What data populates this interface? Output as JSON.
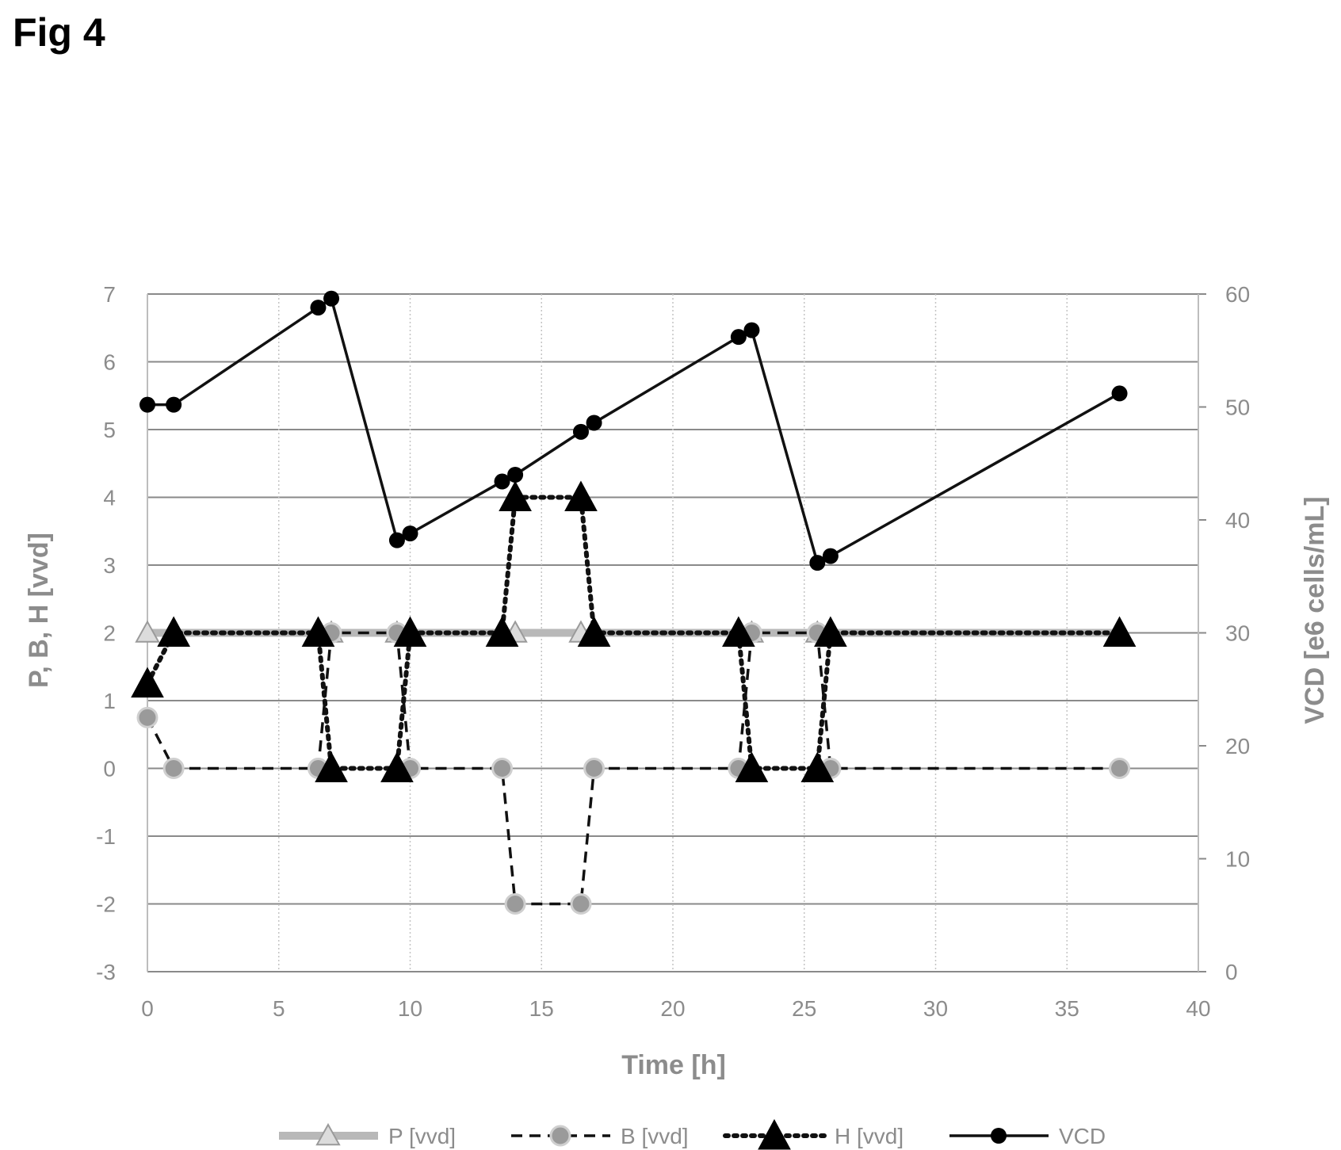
{
  "figure_label": "Fig 4",
  "chart_data": {
    "type": "line",
    "xlabel": "Time [h]",
    "ylabel_left": "P, B, H [vvd]",
    "ylabel_right": "VCD [e6 cells/mL]",
    "xlim": [
      0,
      40
    ],
    "ylim_left": [
      -3,
      7
    ],
    "ylim_right": [
      0,
      60
    ],
    "x_ticks": [
      "0",
      "5",
      "10",
      "15",
      "20",
      "25",
      "30",
      "35",
      "40"
    ],
    "y_left_ticks": [
      "-3",
      "-2",
      "-1",
      "0",
      "1",
      "2",
      "3",
      "4",
      "5",
      "6",
      "7"
    ],
    "y_right_ticks": [
      "0",
      "10",
      "20",
      "30",
      "40",
      "50",
      "60"
    ],
    "grid": "horizontal and vertical",
    "legend_position": "bottom",
    "series": [
      {
        "name": "P [vvd]",
        "axis": "left",
        "style": "thick-gray",
        "marker": "open-triangle",
        "color": "#b5b5b5",
        "x": [
          0,
          1,
          6.5,
          7,
          9.5,
          10,
          13.5,
          14,
          16.5,
          17,
          22.5,
          23,
          25.5,
          26,
          37
        ],
        "y": [
          2,
          2,
          2,
          2,
          2,
          2,
          2,
          2,
          2,
          2,
          2,
          2,
          2,
          2,
          2
        ]
      },
      {
        "name": "B [vvd]",
        "axis": "left",
        "style": "dashed",
        "marker": "gray-circle",
        "color": "#999999",
        "x": [
          0,
          1,
          6.5,
          7,
          9.5,
          10,
          13.5,
          14,
          16.5,
          17,
          22.5,
          23,
          25.5,
          26,
          37
        ],
        "y": [
          0.75,
          0,
          0,
          2,
          2,
          0,
          0,
          -2,
          -2,
          0,
          0,
          2,
          2,
          0,
          0
        ]
      },
      {
        "name": "H [vvd]",
        "axis": "left",
        "style": "dotted",
        "marker": "filled-triangle",
        "color": "#000000",
        "x": [
          0,
          1,
          6.5,
          7,
          9.5,
          10,
          13.5,
          14,
          16.5,
          17,
          22.5,
          23,
          25.5,
          26,
          37
        ],
        "y": [
          1.25,
          2,
          2,
          0,
          0,
          2,
          2,
          4,
          4,
          2,
          2,
          0,
          0,
          2,
          2
        ]
      },
      {
        "name": "VCD",
        "axis": "right",
        "style": "solid",
        "marker": "filled-circle",
        "color": "#000000",
        "x": [
          0,
          1,
          6.5,
          7,
          9.5,
          10,
          13.5,
          14,
          16.5,
          17,
          22.5,
          23,
          25.5,
          26,
          37
        ],
        "y": [
          50.2,
          50.2,
          58.8,
          59.6,
          38.2,
          38.8,
          43.4,
          44.0,
          47.8,
          48.6,
          56.2,
          56.8,
          36.2,
          36.8,
          51.2
        ]
      }
    ]
  }
}
